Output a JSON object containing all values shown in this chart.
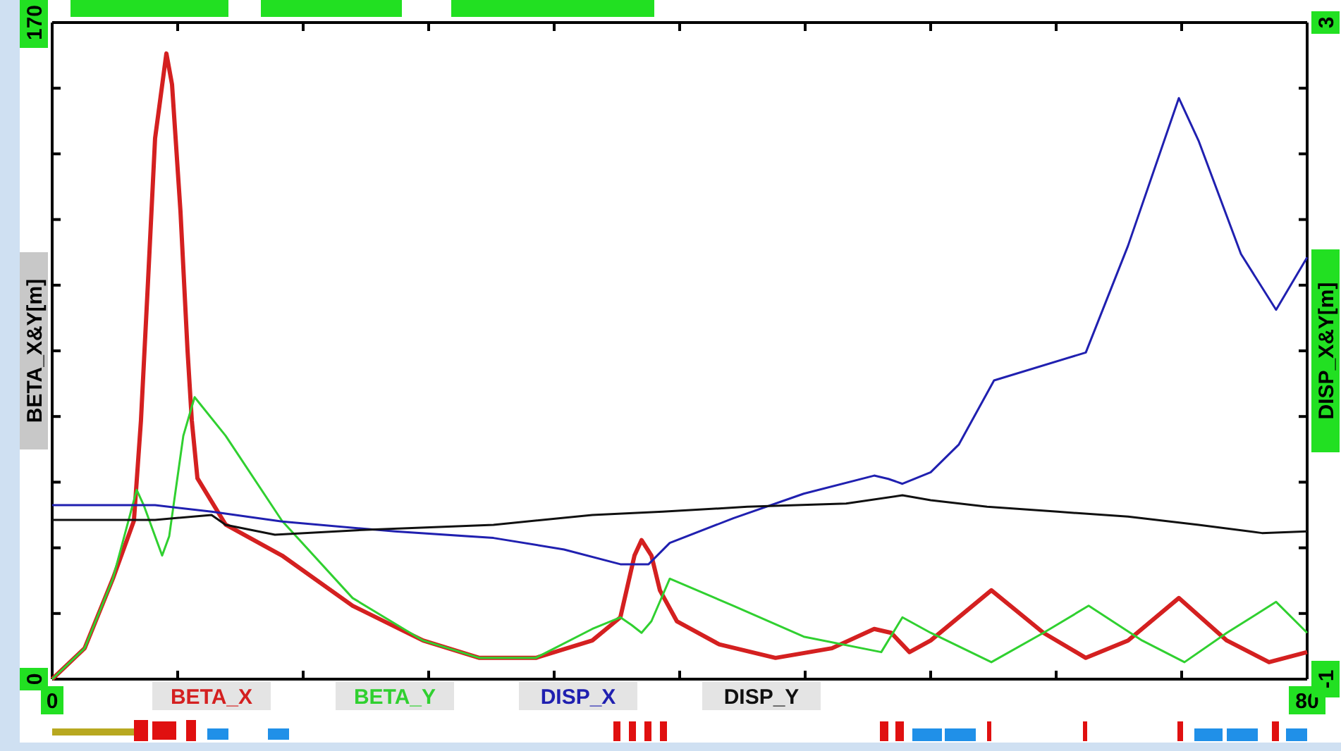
{
  "chart_data": {
    "type": "line",
    "ylabel": "BETA_X&Y[m]",
    "y2label": "DISP_X&Y[m]",
    "xlim": [
      0,
      80
    ],
    "xticks": [
      0,
      {
        "value": 8,
        "label": null
      },
      {
        "value": 16,
        "label": null
      },
      {
        "value": 24,
        "label": null
      },
      {
        "value": 32,
        "label": null
      },
      {
        "value": 40,
        "label": null
      },
      {
        "value": 48,
        "label": null
      },
      {
        "value": 56,
        "label": null
      },
      {
        "value": 64,
        "label": null
      },
      {
        "value": 72,
        "label": null
      },
      80
    ],
    "ylim": [
      0,
      170
    ],
    "yticks": [
      0,
      {
        "value": 17,
        "label": null
      },
      {
        "value": 34,
        "label": null
      },
      {
        "value": 51,
        "label": null
      },
      {
        "value": 68,
        "label": null
      },
      {
        "value": 85,
        "label": null
      },
      {
        "value": 102,
        "label": null
      },
      {
        "value": 119,
        "label": null
      },
      {
        "value": 136,
        "label": null
      },
      {
        "value": 153,
        "label": null
      },
      170
    ],
    "y2lim": [
      -1,
      3
    ],
    "y2ticks": [
      -1,
      {
        "value": -0.6,
        "label": null
      },
      {
        "value": -0.2,
        "label": null
      },
      {
        "value": 0.2,
        "label": null
      },
      {
        "value": 0.6,
        "label": null
      },
      {
        "value": 1,
        "label": null
      },
      {
        "value": 1.4,
        "label": null
      },
      {
        "value": 1.8,
        "label": null
      },
      {
        "value": 2.2,
        "label": null
      },
      {
        "value": 2.6,
        "label": null
      },
      3
    ],
    "grid": false,
    "legend": "bottom",
    "marker": "none",
    "line_style": "solid",
    "series": [
      {
        "name": "BETA_X",
        "color": "#d42020",
        "x": [
          0,
          2.07,
          3.87,
          5.21,
          5.66,
          6.11,
          6.56,
          7.28,
          7.64,
          8.18,
          8.63,
          8.9,
          9.26,
          11.06,
          14.65,
          19.15,
          23.64,
          27.24,
          30.83,
          34.43,
          36.22,
          37.12,
          37.57,
          38.2,
          38.74,
          39.82,
          42.52,
          46.11,
          49.71,
          52.4,
          53.48,
          54.65,
          56,
          59.87,
          63.19,
          65.89,
          68.58,
          71.82,
          74.88,
          77.57,
          80
        ],
        "values": [
          0,
          8,
          26,
          41,
          67,
          103,
          140,
          162,
          154,
          121,
          85,
          67,
          52,
          40,
          32,
          19,
          10,
          5.5,
          5.5,
          10,
          16,
          32,
          36,
          32,
          23,
          15,
          9,
          5.5,
          8,
          13,
          12,
          7,
          10,
          23,
          12,
          5.5,
          10,
          21,
          10,
          4.4,
          7
        ]
      },
      {
        "name": "BETA_Y",
        "color": "#30d030",
        "x": [
          0,
          2.07,
          3.87,
          5.39,
          5.84,
          7.01,
          7.46,
          8.36,
          9.08,
          11.06,
          14.65,
          19.15,
          23.64,
          27.24,
          30.83,
          34.43,
          36.22,
          36.94,
          37.57,
          38.2,
          39.37,
          43.42,
          47.91,
          52.85,
          54.2,
          56,
          59.87,
          63.19,
          66.07,
          69.48,
          72.18,
          74.88,
          78.02,
          80
        ],
        "values": [
          0,
          8,
          26,
          49,
          45,
          32,
          37,
          63,
          73,
          63,
          41,
          21,
          10,
          5.5,
          5.5,
          13,
          16,
          14,
          12,
          15,
          26,
          19,
          11,
          7,
          16,
          12,
          4.4,
          12,
          19,
          10,
          4.4,
          12,
          20,
          12
        ]
      },
      {
        "name": "DISP_X",
        "color": "#2020b0",
        "axis": "y2",
        "x": [
          0,
          6.56,
          10.16,
          14.65,
          21.84,
          28.13,
          32.63,
          36.22,
          37.12,
          38.02,
          39.37,
          43.42,
          47.91,
          52.4,
          53.3,
          54.2,
          56,
          57.8,
          60.04,
          65.89,
          68.58,
          71.82,
          73.08,
          75.78,
          78.02,
          80
        ],
        "values": [
          0.06,
          0.06,
          0.02,
          -0.04,
          -0.1,
          -0.14,
          -0.21,
          -0.3,
          -0.3,
          -0.3,
          -0.17,
          -0.02,
          0.13,
          0.24,
          0.22,
          0.19,
          0.26,
          0.43,
          0.82,
          0.99,
          1.64,
          2.54,
          2.28,
          1.59,
          1.25,
          1.57
        ]
      },
      {
        "name": "DISP_Y",
        "color": "#101010",
        "axis": "y2",
        "x": [
          0,
          6.56,
          10.16,
          11.06,
          14.2,
          20.04,
          28.13,
          34.43,
          38.92,
          44.31,
          50.61,
          54.2,
          56,
          59.6,
          64.09,
          68.58,
          73.08,
          77.12,
          80
        ],
        "values": [
          -0.03,
          -0.03,
          0,
          -0.06,
          -0.12,
          -0.09,
          -0.06,
          0,
          0.02,
          0.05,
          0.07,
          0.12,
          0.09,
          0.05,
          0.02,
          -0.01,
          -0.06,
          -0.11,
          -0.1
        ]
      }
    ]
  }
}
